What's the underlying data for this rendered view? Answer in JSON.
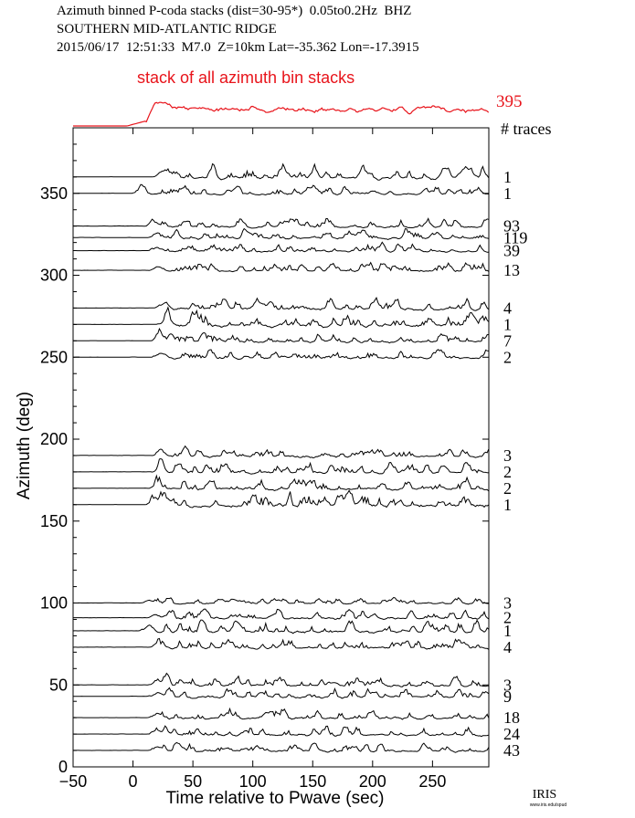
{
  "header": {
    "line1": "Azimuth binned P-coda stacks (dist=30-95*)  0.05to0.2Hz  BHZ",
    "line2": "SOUTHERN MID-ATLANTIC RIDGE",
    "line3": "2015/06/17  12:51:33  M7.0  Z=10km Lat=-35.362 Lon=-17.3915"
  },
  "logo": {
    "text": "IRIS",
    "subtext": "www.iris.edu/spud"
  },
  "colors": {
    "stack": "#e8141b",
    "trace": "#000000"
  },
  "chart_data": {
    "type": "line",
    "xlabel": "Time relative to Pwave (sec)",
    "ylabel": "Azimuth (deg)",
    "xlim": [
      -50,
      297
    ],
    "ylim": [
      0,
      390
    ],
    "xticks": [
      -50,
      0,
      50,
      100,
      150,
      200,
      250
    ],
    "yticks": [
      0,
      50,
      100,
      150,
      200,
      250,
      300,
      350
    ],
    "grid": false,
    "stack": {
      "title": "stack of all azimuth bin stacks",
      "count": "395",
      "arrival": 10
    },
    "count_header": "# traces",
    "series": [
      {
        "azimuth": 360,
        "count": "1",
        "onset": 15,
        "amp": 1.0
      },
      {
        "azimuth": 350,
        "count": "1",
        "onset": -2,
        "amp": 0.7
      },
      {
        "azimuth": 330,
        "count": "93",
        "onset": 10,
        "amp": 0.8
      },
      {
        "azimuth": 323,
        "count": "119",
        "onset": 11,
        "amp": 0.8
      },
      {
        "azimuth": 315,
        "count": "39",
        "onset": 12,
        "amp": 0.7
      },
      {
        "azimuth": 303,
        "count": "13",
        "onset": 12,
        "amp": 0.8
      },
      {
        "azimuth": 280,
        "count": "4",
        "onset": 18,
        "amp": 1.0
      },
      {
        "azimuth": 270,
        "count": "1",
        "onset": 20,
        "amp": 1.3
      },
      {
        "azimuth": 260,
        "count": "7",
        "onset": 15,
        "amp": 0.9
      },
      {
        "azimuth": 250,
        "count": "2",
        "onset": 15,
        "amp": 0.8
      },
      {
        "azimuth": 190,
        "count": "3",
        "onset": 15,
        "amp": 0.9
      },
      {
        "azimuth": 180,
        "count": "2",
        "onset": 15,
        "amp": 0.9
      },
      {
        "azimuth": 170,
        "count": "2",
        "onset": 12,
        "amp": 1.0
      },
      {
        "azimuth": 160,
        "count": "1",
        "onset": 10,
        "amp": 1.3
      },
      {
        "azimuth": 100,
        "count": "3",
        "onset": 5,
        "amp": 0.6
      },
      {
        "azimuth": 91,
        "count": "2",
        "onset": 10,
        "amp": 0.8
      },
      {
        "azimuth": 83,
        "count": "1",
        "onset": 5,
        "amp": 1.1
      },
      {
        "azimuth": 73,
        "count": "4",
        "onset": 12,
        "amp": 0.9
      },
      {
        "azimuth": 50,
        "count": "3",
        "onset": 12,
        "amp": 0.9
      },
      {
        "azimuth": 43,
        "count": "9",
        "onset": 12,
        "amp": 0.8
      },
      {
        "azimuth": 30,
        "count": "18",
        "onset": 12,
        "amp": 0.9
      },
      {
        "azimuth": 20,
        "count": "24",
        "onset": 12,
        "amp": 0.9
      },
      {
        "azimuth": 10,
        "count": "43",
        "onset": 12,
        "amp": 0.8
      }
    ]
  }
}
